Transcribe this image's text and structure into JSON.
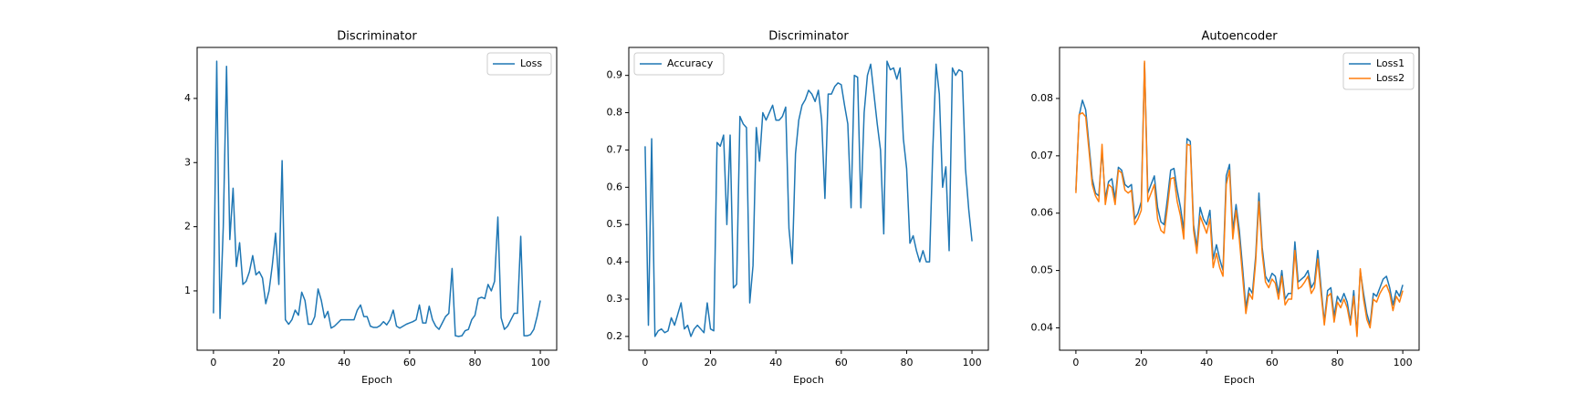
{
  "chart_data": [
    {
      "type": "line",
      "title": "Discriminator",
      "xlabel": "Epoch",
      "x": [
        0,
        1,
        2,
        3,
        4,
        5,
        6,
        7,
        8,
        9,
        10,
        11,
        12,
        13,
        14,
        15,
        16,
        17,
        18,
        19,
        20,
        21,
        22,
        23,
        24,
        25,
        26,
        27,
        28,
        29,
        30,
        31,
        32,
        33,
        34,
        35,
        36,
        37,
        38,
        39,
        40,
        41,
        42,
        43,
        44,
        45,
        46,
        47,
        48,
        49,
        50,
        51,
        52,
        53,
        54,
        55,
        56,
        57,
        58,
        59,
        60,
        61,
        62,
        63,
        64,
        65,
        66,
        67,
        68,
        69,
        70,
        71,
        72,
        73,
        74,
        75,
        76,
        77,
        78,
        79,
        80,
        81,
        82,
        83,
        84,
        85,
        86,
        87,
        88,
        89,
        90,
        91,
        92,
        93,
        94,
        95,
        96,
        97,
        98,
        99,
        100
      ],
      "series": [
        {
          "name": "Loss",
          "color": "#1f77b4",
          "values": [
            0.65,
            4.58,
            0.57,
            2.0,
            4.5,
            1.8,
            2.6,
            1.38,
            1.75,
            1.1,
            1.15,
            1.3,
            1.55,
            1.25,
            1.3,
            1.2,
            0.8,
            1.0,
            1.4,
            1.9,
            1.1,
            3.03,
            0.55,
            0.48,
            0.55,
            0.7,
            0.62,
            0.98,
            0.85,
            0.48,
            0.48,
            0.6,
            1.03,
            0.85,
            0.58,
            0.68,
            0.42,
            0.45,
            0.5,
            0.55,
            0.55,
            0.55,
            0.55,
            0.55,
            0.7,
            0.78,
            0.6,
            0.6,
            0.45,
            0.43,
            0.43,
            0.46,
            0.52,
            0.47,
            0.55,
            0.7,
            0.45,
            0.42,
            0.45,
            0.48,
            0.5,
            0.52,
            0.55,
            0.78,
            0.5,
            0.5,
            0.76,
            0.55,
            0.45,
            0.4,
            0.5,
            0.6,
            0.65,
            1.35,
            0.3,
            0.29,
            0.3,
            0.38,
            0.4,
            0.55,
            0.62,
            0.88,
            0.9,
            0.88,
            1.1,
            1.0,
            1.15,
            2.15,
            0.58,
            0.4,
            0.45,
            0.55,
            0.65,
            0.65,
            1.85,
            0.3,
            0.3,
            0.32,
            0.4,
            0.6,
            0.85
          ]
        }
      ],
      "xlim": [
        -5,
        105
      ],
      "xticks": [
        0,
        20,
        40,
        60,
        80,
        100
      ],
      "ylim": [
        0.075,
        4.795
      ],
      "yticks": [
        1,
        2,
        3,
        4
      ],
      "legend": "upper right"
    },
    {
      "type": "line",
      "title": "Discriminator",
      "xlabel": "Epoch",
      "x": [
        0,
        1,
        2,
        3,
        4,
        5,
        6,
        7,
        8,
        9,
        10,
        11,
        12,
        13,
        14,
        15,
        16,
        17,
        18,
        19,
        20,
        21,
        22,
        23,
        24,
        25,
        26,
        27,
        28,
        29,
        30,
        31,
        32,
        33,
        34,
        35,
        36,
        37,
        38,
        39,
        40,
        41,
        42,
        43,
        44,
        45,
        46,
        47,
        48,
        49,
        50,
        51,
        52,
        53,
        54,
        55,
        56,
        57,
        58,
        59,
        60,
        61,
        62,
        63,
        64,
        65,
        66,
        67,
        68,
        69,
        70,
        71,
        72,
        73,
        74,
        75,
        76,
        77,
        78,
        79,
        80,
        81,
        82,
        83,
        84,
        85,
        86,
        87,
        88,
        89,
        90,
        91,
        92,
        93,
        94,
        95,
        96,
        97,
        98,
        99,
        100
      ],
      "series": [
        {
          "name": "Accuracy",
          "color": "#1f77b4",
          "values": [
            0.71,
            0.23,
            0.73,
            0.2,
            0.215,
            0.22,
            0.21,
            0.215,
            0.25,
            0.23,
            0.26,
            0.29,
            0.22,
            0.23,
            0.2,
            0.22,
            0.23,
            0.22,
            0.21,
            0.29,
            0.22,
            0.215,
            0.72,
            0.71,
            0.74,
            0.5,
            0.74,
            0.33,
            0.34,
            0.79,
            0.77,
            0.76,
            0.29,
            0.39,
            0.76,
            0.67,
            0.8,
            0.78,
            0.8,
            0.82,
            0.78,
            0.78,
            0.79,
            0.815,
            0.49,
            0.395,
            0.69,
            0.78,
            0.82,
            0.835,
            0.86,
            0.85,
            0.83,
            0.86,
            0.78,
            0.57,
            0.85,
            0.85,
            0.87,
            0.88,
            0.875,
            0.82,
            0.77,
            0.545,
            0.9,
            0.895,
            0.545,
            0.8,
            0.9,
            0.93,
            0.85,
            0.77,
            0.7,
            0.475,
            0.938,
            0.915,
            0.92,
            0.89,
            0.92,
            0.73,
            0.65,
            0.45,
            0.47,
            0.43,
            0.4,
            0.43,
            0.4,
            0.4,
            0.7,
            0.93,
            0.85,
            0.6,
            0.655,
            0.43,
            0.92,
            0.9,
            0.915,
            0.91,
            0.65,
            0.54,
            0.455
          ]
        }
      ],
      "xlim": [
        -5,
        105
      ],
      "xticks": [
        0,
        20,
        40,
        60,
        80,
        100
      ],
      "ylim": [
        0.163,
        0.975
      ],
      "yticks": [
        0.2,
        0.3,
        0.4,
        0.5,
        0.6,
        0.7,
        0.8,
        0.9
      ],
      "legend": "upper left"
    },
    {
      "type": "line",
      "title": "Autoencoder",
      "xlabel": "Epoch",
      "x": [
        0,
        1,
        2,
        3,
        4,
        5,
        6,
        7,
        8,
        9,
        10,
        11,
        12,
        13,
        14,
        15,
        16,
        17,
        18,
        19,
        20,
        21,
        22,
        23,
        24,
        25,
        26,
        27,
        28,
        29,
        30,
        31,
        32,
        33,
        34,
        35,
        36,
        37,
        38,
        39,
        40,
        41,
        42,
        43,
        44,
        45,
        46,
        47,
        48,
        49,
        50,
        51,
        52,
        53,
        54,
        55,
        56,
        57,
        58,
        59,
        60,
        61,
        62,
        63,
        64,
        65,
        66,
        67,
        68,
        69,
        70,
        71,
        72,
        73,
        74,
        75,
        76,
        77,
        78,
        79,
        80,
        81,
        82,
        83,
        84,
        85,
        86,
        87,
        88,
        89,
        90,
        91,
        92,
        93,
        94,
        95,
        96,
        97,
        98,
        99,
        100
      ],
      "series": [
        {
          "name": "Loss1",
          "color": "#1f77b4",
          "values": [
            0.064,
            0.077,
            0.0797,
            0.078,
            0.072,
            0.066,
            0.0635,
            0.063,
            0.071,
            0.0625,
            0.0655,
            0.066,
            0.0625,
            0.068,
            0.0675,
            0.065,
            0.0645,
            0.065,
            0.059,
            0.06,
            0.062,
            0.0862,
            0.0635,
            0.065,
            0.0665,
            0.061,
            0.0585,
            0.058,
            0.0625,
            0.0675,
            0.0678,
            0.064,
            0.061,
            0.057,
            0.073,
            0.0725,
            0.058,
            0.054,
            0.061,
            0.059,
            0.058,
            0.0605,
            0.052,
            0.0545,
            0.052,
            0.05,
            0.0665,
            0.0685,
            0.057,
            0.0615,
            0.057,
            0.0505,
            0.0435,
            0.047,
            0.046,
            0.0525,
            0.0635,
            0.054,
            0.049,
            0.048,
            0.0495,
            0.049,
            0.046,
            0.05,
            0.045,
            0.046,
            0.046,
            0.055,
            0.048,
            0.0485,
            0.049,
            0.05,
            0.047,
            0.048,
            0.0535,
            0.047,
            0.041,
            0.0465,
            0.047,
            0.042,
            0.0455,
            0.0445,
            0.046,
            0.0445,
            0.041,
            0.0465,
            0.039,
            0.05,
            0.046,
            0.0425,
            0.0405,
            0.046,
            0.0455,
            0.047,
            0.0485,
            0.049,
            0.047,
            0.044,
            0.0465,
            0.0455,
            0.0475
          ]
        },
        {
          "name": "Loss2",
          "color": "#ff7f0e",
          "values": [
            0.0635,
            0.0772,
            0.0775,
            0.0768,
            0.071,
            0.065,
            0.063,
            0.062,
            0.072,
            0.0615,
            0.065,
            0.0645,
            0.0615,
            0.0675,
            0.067,
            0.064,
            0.0635,
            0.064,
            0.058,
            0.059,
            0.0605,
            0.0865,
            0.062,
            0.0635,
            0.065,
            0.059,
            0.057,
            0.0565,
            0.061,
            0.066,
            0.0662,
            0.062,
            0.0595,
            0.0555,
            0.072,
            0.0718,
            0.057,
            0.053,
            0.0595,
            0.058,
            0.0565,
            0.059,
            0.0505,
            0.053,
            0.0505,
            0.049,
            0.065,
            0.0675,
            0.0555,
            0.0605,
            0.0555,
            0.049,
            0.0425,
            0.046,
            0.045,
            0.0515,
            0.062,
            0.053,
            0.048,
            0.047,
            0.0485,
            0.0478,
            0.045,
            0.049,
            0.044,
            0.045,
            0.045,
            0.0535,
            0.0468,
            0.0472,
            0.048,
            0.049,
            0.046,
            0.047,
            0.052,
            0.046,
            0.0405,
            0.0455,
            0.046,
            0.041,
            0.0445,
            0.0435,
            0.045,
            0.0435,
            0.0405,
            0.0455,
            0.0385,
            0.0503,
            0.045,
            0.0415,
            0.04,
            0.045,
            0.0445,
            0.046,
            0.047,
            0.0475,
            0.046,
            0.043,
            0.0455,
            0.0445,
            0.0465
          ]
        }
      ],
      "xlim": [
        -5,
        105
      ],
      "xticks": [
        0,
        20,
        40,
        60,
        80,
        100
      ],
      "ylim": [
        0.0361,
        0.0889
      ],
      "yticks": [
        0.04,
        0.05,
        0.06,
        0.07,
        0.08
      ],
      "legend": "upper right"
    }
  ]
}
